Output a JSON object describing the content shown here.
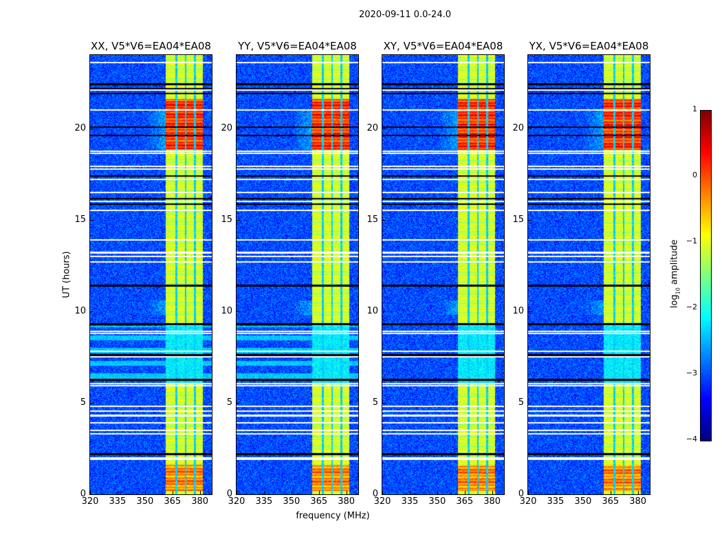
{
  "chart_data": {
    "type": "heatmap",
    "title": "2020-09-11 0.0-24.0",
    "xlabel": "frequency (MHz)",
    "ylabel": "UT (hours)",
    "xlim": [
      320,
      386.5
    ],
    "ylim": [
      0,
      24
    ],
    "xticks": [
      320,
      335,
      350,
      365,
      380
    ],
    "yticks": [
      0,
      5,
      10,
      15,
      20
    ],
    "panels": [
      {
        "title": "XX, V5*V6=EA04*EA08",
        "pol": "XX"
      },
      {
        "title": "YY, V5*V6=EA04*EA08",
        "pol": "YY"
      },
      {
        "title": "XY, V5*V6=EA04*EA08",
        "pol": "XY"
      },
      {
        "title": "YX, V5*V6=EA04*EA08",
        "pol": "YX"
      }
    ],
    "features": {
      "background_log_amp": -3.0,
      "bright_band_mhz": [
        361.5,
        381.5
      ],
      "band_gaps_mhz": [
        367.2,
        372.2,
        377.2
      ],
      "band_log_amp": -1.1,
      "high_intervals_hours": [
        [
          18.8,
          21.6,
          0.1
        ],
        [
          0.2,
          1.6,
          -0.3
        ]
      ],
      "low_interval_hours": [
        6.1,
        9.2,
        -2.2
      ],
      "flagged_white_hours": [
        23.6,
        22.1,
        21.0,
        18.75,
        18.62,
        17.9,
        17.75,
        17.2,
        16.5,
        16.0,
        15.5,
        13.9,
        13.2,
        13.0,
        12.7,
        8.9,
        8.8,
        7.8,
        7.5,
        6.05,
        5.95,
        4.8,
        4.55,
        4.3,
        3.9,
        3.5,
        3.3,
        2.0,
        1.9
      ],
      "flagged_black_hours": [
        22.4,
        22.15,
        21.9,
        20.05,
        19.6,
        17.4,
        16.15,
        15.85,
        11.4,
        9.3,
        7.6,
        6.25,
        2.2
      ]
    },
    "colorbar": {
      "label_prefix": "log",
      "label_sub": "10",
      "label_suffix": " amplitude",
      "range": [
        -4,
        1
      ],
      "ticks": [
        "1",
        "0",
        "−1",
        "−2",
        "−3",
        "−4"
      ],
      "colormap": "jet"
    }
  }
}
